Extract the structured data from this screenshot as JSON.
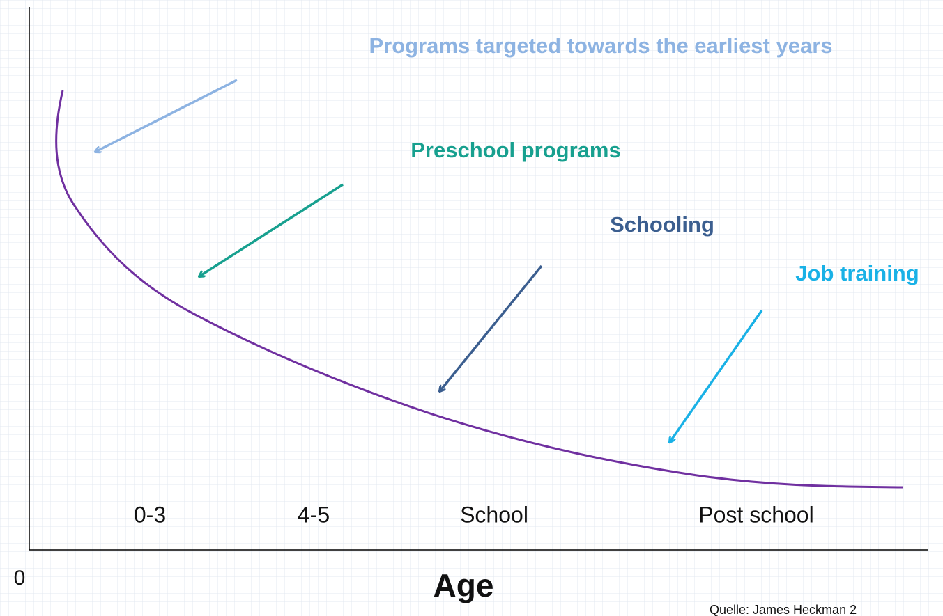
{
  "annotations": {
    "earliest": "Programs targeted towards the earliest years",
    "preschool": "Preschool programs",
    "schooling": "Schooling",
    "job": "Job training"
  },
  "stages": [
    "0-3",
    "4-5",
    "School",
    "Post school"
  ],
  "origin": "0",
  "x_axis_label": "Age",
  "source": "Quelle: James Heckman 2"
}
